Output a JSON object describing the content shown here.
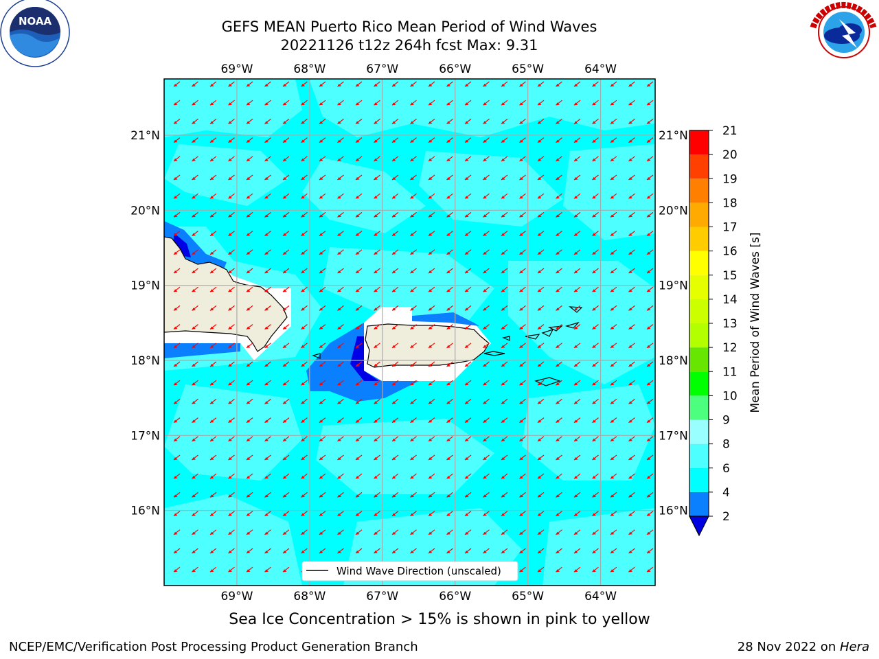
{
  "header": {
    "title_line1": "GEFS MEAN Puerto Rico Mean Period of Wind Waves",
    "title_line2": "20221126 t12z 264h fcst   Max: 9.31"
  },
  "logos": {
    "left": "noaa-logo",
    "right": "national-weather-service-logo"
  },
  "map": {
    "lon_labels": [
      "69°W",
      "68°W",
      "67°W",
      "66°W",
      "65°W",
      "64°W"
    ],
    "lat_labels": [
      "21°N",
      "20°N",
      "19°N",
      "18°N",
      "17°N",
      "16°N"
    ],
    "lon_values": [
      -69,
      -68,
      -67,
      -66,
      -65,
      -64
    ],
    "lat_values": [
      21,
      20,
      19,
      18,
      17,
      16
    ],
    "extent": {
      "lon_min": -70.0,
      "lon_max": -63.25,
      "lat_min": 15.0,
      "lat_max": 21.75
    },
    "colors": {
      "ocean_main": "#00ffff",
      "ocean_light": "#4dffff",
      "land": "#efeddc",
      "arrow": "#ff0000",
      "grid": "#aaaaaa"
    },
    "legend_label": "Wind Wave Direction (unscaled)"
  },
  "colorbar": {
    "label": "Mean Period of Wind Waves [s]",
    "ticks": [
      "2",
      "4",
      "6",
      "8",
      "9",
      "10",
      "11",
      "12",
      "13",
      "14",
      "15",
      "16",
      "17",
      "18",
      "19",
      "20",
      "21"
    ],
    "colors": [
      "#0000ff",
      "#0a80ff",
      "#00ffff",
      "#4dffff",
      "#99ffff",
      "#4dff7f",
      "#00ff00",
      "#66e600",
      "#b3ff00",
      "#ccff00",
      "#e6ff00",
      "#ffff00",
      "#ffcc00",
      "#ffaa00",
      "#ff8000",
      "#ff4000",
      "#ff0000"
    ],
    "under_color": "#0000e0"
  },
  "caption": "Sea Ice Concentration > 15% is shown in pink to yellow",
  "footer": {
    "left": "NCEP/EMC/Verification Post Processing Product Generation Branch",
    "right_prefix": "28 Nov 2022 on ",
    "right_host": "Hera"
  }
}
